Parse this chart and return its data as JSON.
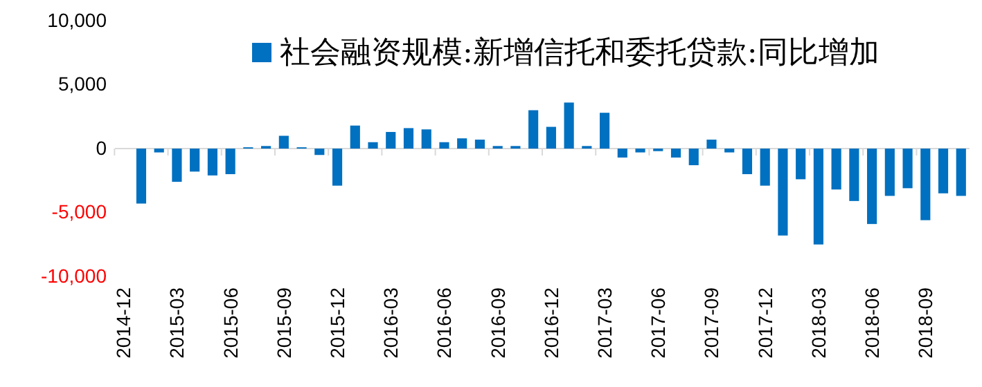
{
  "chart_data": {
    "type": "bar",
    "categories": [
      "2014-12",
      null,
      null,
      "2015-03",
      null,
      null,
      "2015-06",
      null,
      null,
      "2015-09",
      null,
      null,
      "2015-12",
      null,
      null,
      "2016-03",
      null,
      null,
      "2016-06",
      null,
      null,
      "2016-09",
      null,
      null,
      "2016-12",
      null,
      null,
      "2017-03",
      null,
      null,
      "2017-06",
      null,
      null,
      "2017-09",
      null,
      null,
      "2017-12",
      null,
      null,
      "2018-03",
      null,
      null,
      "2018-06",
      null,
      null,
      "2018-09",
      null,
      null
    ],
    "series": [
      {
        "name": "社会融资规模:新增信托和委托贷款:同比增加",
        "color": "#0070c0",
        "values": [
          null,
          -4300,
          -300,
          -2600,
          -1800,
          -2100,
          -2000,
          100,
          200,
          1000,
          100,
          -500,
          -2900,
          1800,
          500,
          1300,
          1600,
          1500,
          500,
          800,
          700,
          200,
          200,
          3000,
          1700,
          3600,
          200,
          2800,
          -700,
          -300,
          -200,
          -700,
          -1300,
          700,
          -300,
          -2000,
          -2900,
          -6800,
          -2400,
          -7500,
          -3200,
          -4100,
          -5900,
          -3700,
          -3100,
          -5600,
          -3500,
          -3700
        ]
      }
    ],
    "ylim": [
      -10000,
      10000
    ],
    "yticks": [
      {
        "value": -10000,
        "label": "-10,000"
      },
      {
        "value": -5000,
        "label": "-5,000"
      },
      0,
      {
        "value": 5000,
        "label": "5,000"
      },
      {
        "value": 10000,
        "label": "10,000"
      }
    ],
    "legend": "top right"
  }
}
